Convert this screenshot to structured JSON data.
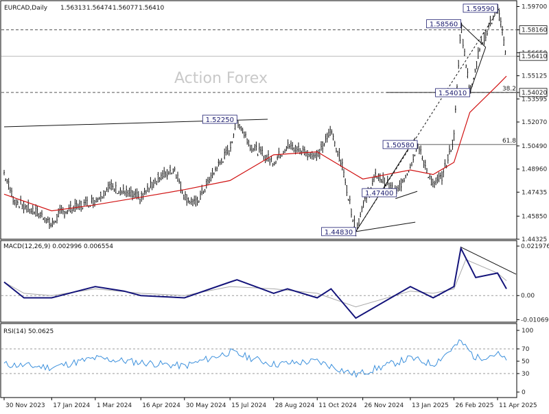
{
  "header": {
    "symbol": "EURCAD,Daily",
    "open": "1.56313",
    "high": "1.56474",
    "low": "1.56077",
    "close": "1.56410"
  },
  "watermark": "Action Forex",
  "colors": {
    "candle": "#0a0a0a",
    "ma": "#d01010",
    "macd": "#13137a",
    "signal": "#a8a8a8",
    "rsi": "#3a8fdc",
    "grid_dash": "#9a9a9a"
  },
  "chart_data": [
    {
      "type": "candlestick",
      "title": "EURCAD,Daily",
      "y_ticks": [
        "1.59700",
        "1.58160",
        "1.56650",
        "1.56410",
        "1.55125",
        "1.54020",
        "1.53595",
        "1.52070",
        "1.50490",
        "1.48960",
        "1.47435",
        "1.45850",
        "1.44325"
      ],
      "ylim": [
        1.44325,
        1.59995
      ],
      "x_ticks": [
        "30 Nov 2023",
        "17 Jan 2024",
        "1 Mar 2024",
        "16 Apr 2024",
        "30 May 2024",
        "15 Jul 2024",
        "28 Aug 2024",
        "11 Oct 2024",
        "26 Nov 2024",
        "13 Jan 2025",
        "26 Feb 2025",
        "11 Apr 2025"
      ],
      "price_path": [
        [
          "30 Nov 2023",
          1.487
        ],
        [
          "10 Dec 2023",
          1.469
        ],
        [
          "20 Dec 2023",
          1.465
        ],
        [
          "10 Jan 2024",
          1.458
        ],
        [
          "17 Jan 2024",
          1.452
        ],
        [
          "24 Jan 2024",
          1.46
        ],
        [
          "1 Mar 2024",
          1.469
        ],
        [
          "15 Mar 2024",
          1.478
        ],
        [
          "16 Apr 2024",
          1.47
        ],
        [
          "30 Apr 2024",
          1.482
        ],
        [
          "20 May 2024",
          1.49
        ],
        [
          "30 May 2024",
          1.472
        ],
        [
          "10 Jun 2024",
          1.466
        ],
        [
          "1 Jul 2024",
          1.49
        ],
        [
          "15 Jul 2024",
          1.503
        ],
        [
          "22 Jul 2024",
          1.5225
        ],
        [
          "5 Aug 2024",
          1.505
        ],
        [
          "28 Aug 2024",
          1.494
        ],
        [
          "11 Sep 2024",
          1.505
        ],
        [
          "11 Oct 2024",
          1.498
        ],
        [
          "25 Oct 2024",
          1.515
        ],
        [
          "5 Nov 2024",
          1.492
        ],
        [
          "19 Nov 2024",
          1.4483
        ],
        [
          "26 Nov 2024",
          1.466
        ],
        [
          "10 Dec 2024",
          1.486
        ],
        [
          "30 Dec 2024",
          1.474
        ],
        [
          "13 Jan 2025",
          1.492
        ],
        [
          "20 Jan 2025",
          1.5058
        ],
        [
          "5 Feb 2025",
          1.478
        ],
        [
          "15 Feb 2025",
          1.486
        ],
        [
          "26 Feb 2025",
          1.51
        ],
        [
          "5 Mar 2025",
          1.5856
        ],
        [
          "14 Mar 2025",
          1.5401
        ],
        [
          "25 Mar 2025",
          1.572
        ],
        [
          "11 Apr 2025",
          1.5959
        ],
        [
          "20 Apr 2025",
          1.5641
        ]
      ],
      "ma_path": [
        [
          "30 Nov 2023",
          1.473
        ],
        [
          "17 Jan 2024",
          1.462
        ],
        [
          "1 Mar 2024",
          1.466
        ],
        [
          "16 Apr 2024",
          1.471
        ],
        [
          "30 May 2024",
          1.476
        ],
        [
          "15 Jul 2024",
          1.482
        ],
        [
          "28 Aug 2024",
          1.499
        ],
        [
          "11 Oct 2024",
          1.501
        ],
        [
          "26 Nov 2024",
          1.483
        ],
        [
          "13 Jan 2025",
          1.489
        ],
        [
          "5 Feb 2025",
          1.486
        ],
        [
          "26 Feb 2025",
          1.494
        ],
        [
          "14 Mar 2025",
          1.527
        ],
        [
          "11 Apr 2025",
          1.545
        ],
        [
          "20 Apr 2025",
          1.551
        ]
      ],
      "levels": [
        {
          "label": "1.59590",
          "value": 1.5959,
          "date": "11 Apr 2025"
        },
        {
          "label": "1.58560",
          "value": 1.5856,
          "date": "5 Mar 2025"
        },
        {
          "label": "1.54010",
          "value": 1.5401,
          "date": "14 Mar 2025"
        },
        {
          "label": "1.52250",
          "value": 1.5225,
          "date": "22 Jul 2024"
        },
        {
          "label": "1.50580",
          "value": 1.5058,
          "date": "20 Jan 2025"
        },
        {
          "label": "1.47400",
          "value": 1.474,
          "date": "30 Dec 2024"
        },
        {
          "label": "1.44830",
          "value": 1.4483,
          "date": "19 Nov 2024"
        }
      ],
      "fib_labels": [
        {
          "label": "38.2",
          "value": 1.5402
        },
        {
          "label": "61.8",
          "value": 1.5058
        }
      ],
      "hlines": [
        1.5816,
        1.5402
      ],
      "current_price": "1.56410"
    },
    {
      "type": "line",
      "title": "MACD(12,26,9) 0.002996 0.006554",
      "y_ticks": [
        "0.021976",
        "0.00",
        "-0.010692"
      ],
      "ylim": [
        -0.0118,
        0.0232
      ],
      "macd_path": [
        [
          "30 Nov 2023",
          0.006
        ],
        [
          "20 Dec 2023",
          -0.001
        ],
        [
          "17 Jan 2024",
          -0.001
        ],
        [
          "1 Mar 2024",
          0.004
        ],
        [
          "30 Mar 2024",
          0.002
        ],
        [
          "16 Apr 2024",
          0.0
        ],
        [
          "30 May 2024",
          -0.001
        ],
        [
          "15 Jul 2024",
          0.006
        ],
        [
          "22 Jul 2024",
          0.007
        ],
        [
          "28 Aug 2024",
          0.001
        ],
        [
          "11 Sep 2024",
          0.003
        ],
        [
          "11 Oct 2024",
          -0.001
        ],
        [
          "25 Oct 2024",
          0.003
        ],
        [
          "19 Nov 2024",
          -0.01
        ],
        [
          "13 Jan 2025",
          0.004
        ],
        [
          "5 Feb 2025",
          -0.001
        ],
        [
          "26 Feb 2025",
          0.004
        ],
        [
          "5 Mar 2025",
          0.021
        ],
        [
          "20 Mar 2025",
          0.008
        ],
        [
          "11 Apr 2025",
          0.01
        ],
        [
          "20 Apr 2025",
          0.003
        ]
      ],
      "signal_path": [
        [
          "30 Nov 2023",
          0.006
        ],
        [
          "20 Dec 2023",
          0.001
        ],
        [
          "17 Jan 2024",
          0.0
        ],
        [
          "1 Mar 2024",
          0.003
        ],
        [
          "16 Apr 2024",
          0.001
        ],
        [
          "30 May 2024",
          0.0
        ],
        [
          "15 Jul 2024",
          0.004
        ],
        [
          "28 Aug 2024",
          0.003
        ],
        [
          "11 Oct 2024",
          0.001
        ],
        [
          "19 Nov 2024",
          -0.005
        ],
        [
          "13 Jan 2025",
          0.002
        ],
        [
          "5 Feb 2025",
          0.001
        ],
        [
          "26 Feb 2025",
          0.003
        ],
        [
          "10 Mar 2025",
          0.016
        ],
        [
          "11 Apr 2025",
          0.01
        ],
        [
          "20 Apr 2025",
          0.0066
        ]
      ]
    },
    {
      "type": "line",
      "title": "RSI(14) 50.0625",
      "y_ticks": [
        "100",
        "70",
        "50",
        "30",
        "0"
      ],
      "ylim": [
        0,
        100
      ],
      "rsi_path": [
        [
          "30 Nov 2023",
          45
        ],
        [
          "17 Jan 2024",
          40
        ],
        [
          "1 Mar 2024",
          55
        ],
        [
          "16 Apr 2024",
          48
        ],
        [
          "30 May 2024",
          42
        ],
        [
          "15 Jul 2024",
          65
        ],
        [
          "28 Aug 2024",
          45
        ],
        [
          "11 Oct 2024",
          50
        ],
        [
          "19 Nov 2024",
          28
        ],
        [
          "13 Jan 2025",
          55
        ],
        [
          "5 Feb 2025",
          45
        ],
        [
          "5 Mar 2025",
          82
        ],
        [
          "20 Mar 2025",
          55
        ],
        [
          "11 Apr 2025",
          62
        ],
        [
          "20 Apr 2025",
          50
        ]
      ]
    }
  ]
}
